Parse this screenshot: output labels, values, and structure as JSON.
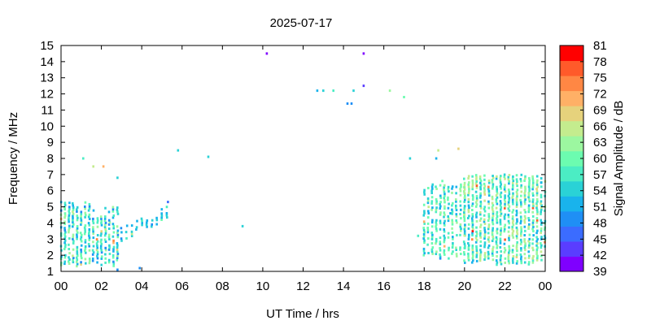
{
  "chart_data": {
    "type": "heatmap",
    "title": "2025-07-17",
    "xlabel": "UT Time / hrs",
    "ylabel": "Frequency / MHz",
    "xlim": [
      0,
      24
    ],
    "ylim": [
      1,
      15
    ],
    "x_ticks": [
      "00",
      "02",
      "04",
      "06",
      "08",
      "10",
      "12",
      "14",
      "16",
      "18",
      "20",
      "22",
      "00"
    ],
    "y_ticks": [
      "1",
      "2",
      "3",
      "4",
      "5",
      "6",
      "7",
      "8",
      "9",
      "10",
      "11",
      "12",
      "13",
      "14",
      "15"
    ],
    "colorbar": {
      "label": "Signal Amplitude / dB",
      "range": [
        39,
        81
      ],
      "ticks": [
        "81",
        "78",
        "75",
        "72",
        "69",
        "66",
        "63",
        "60",
        "57",
        "54",
        "51",
        "48",
        "45",
        "42",
        "39"
      ],
      "colors": [
        "#7f00ff",
        "#5a3dff",
        "#3b6cff",
        "#1f8ff5",
        "#19b3ec",
        "#2ad2d6",
        "#4bedc4",
        "#6cfcb0",
        "#9cf7a0",
        "#c4ec8e",
        "#e6d27c",
        "#ffb066",
        "#ff8744",
        "#ff5a2a",
        "#ff0000"
      ]
    },
    "points": [
      [
        10.2,
        14.5,
        40
      ],
      [
        15.0,
        14.5,
        40
      ],
      [
        15.0,
        12.5,
        44
      ],
      [
        12.7,
        12.2,
        52
      ],
      [
        13.0,
        12.2,
        54
      ],
      [
        13.5,
        12.2,
        56
      ],
      [
        14.5,
        12.2,
        55
      ],
      [
        16.3,
        12.2,
        62
      ],
      [
        17.0,
        11.8,
        61
      ],
      [
        14.2,
        11.4,
        49
      ],
      [
        14.4,
        11.4,
        50
      ],
      [
        5.8,
        8.5,
        55
      ],
      [
        7.3,
        8.1,
        54
      ],
      [
        9.0,
        3.8,
        55
      ],
      [
        1.1,
        8.0,
        57
      ],
      [
        1.6,
        7.5,
        65
      ],
      [
        2.1,
        7.5,
        70
      ],
      [
        2.8,
        6.8,
        55
      ],
      [
        5.3,
        5.3,
        46
      ],
      [
        2.8,
        1.1,
        50
      ],
      [
        3.9,
        1.2,
        48
      ],
      [
        17.3,
        8.0,
        54
      ],
      [
        18.7,
        8.5,
        66
      ],
      [
        19.7,
        8.6,
        69
      ],
      [
        18.6,
        8.0,
        52
      ],
      [
        18.9,
        6.6,
        60
      ],
      [
        20.2,
        5.3,
        55
      ],
      [
        19.3,
        4.6,
        52
      ],
      [
        18.8,
        1.8,
        49
      ],
      [
        23.8,
        6.5,
        51
      ],
      [
        17.7,
        3.2,
        58
      ]
    ],
    "clusters": [
      {
        "x": [
          0.0,
          3.0
        ],
        "y": [
          1.3,
          5.4
        ],
        "step": 0.2,
        "density": 0.72,
        "amp_mid": 56,
        "amp_spread": 7,
        "y_top_decay": true
      },
      {
        "x": [
          3.0,
          5.4
        ],
        "y": [
          3.4,
          4.8
        ],
        "step": 0.25,
        "density": 0.55,
        "amp_mid": 53,
        "amp_spread": 4,
        "rising": true
      },
      {
        "x": [
          18.0,
          20.0
        ],
        "y": [
          1.8,
          6.4
        ],
        "step": 0.2,
        "density": 0.55,
        "amp_mid": 57,
        "amp_spread": 6
      },
      {
        "x": [
          20.0,
          24.0
        ],
        "y": [
          1.4,
          7.0
        ],
        "step": 0.2,
        "density": 0.75,
        "amp_mid": 59,
        "amp_spread": 8
      }
    ]
  }
}
